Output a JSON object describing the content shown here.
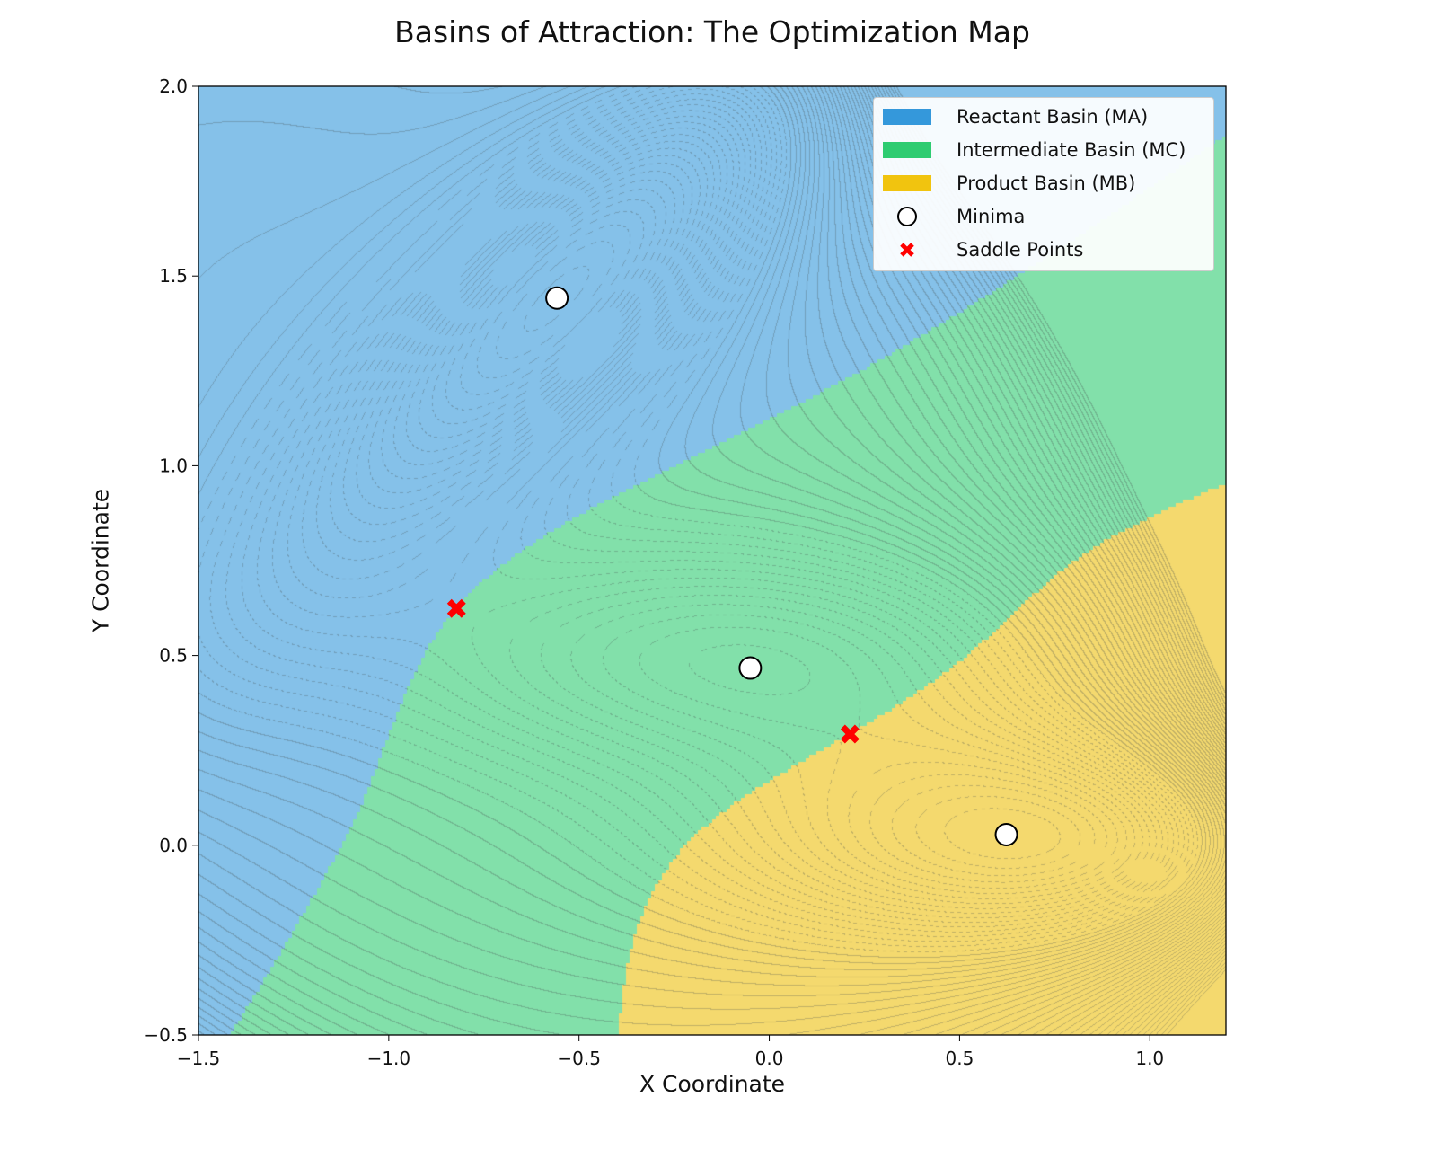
{
  "chart_data": {
    "type": "heatmap",
    "title": "Basins of Attraction: The Optimization Map",
    "xlabel": "X Coordinate",
    "ylabel": "Y Coordinate",
    "xlim": [
      -1.5,
      1.2
    ],
    "ylim": [
      -0.5,
      2.0
    ],
    "xticks": [
      -1.5,
      -1.0,
      -0.5,
      0.0,
      0.5,
      1.0
    ],
    "xtick_labels": [
      "−1.5",
      "−1.0",
      "−0.5",
      "0.0",
      "0.5",
      "1.0"
    ],
    "yticks": [
      -0.5,
      0.0,
      0.5,
      1.0,
      1.5,
      2.0
    ],
    "ytick_labels": [
      "−0.5",
      "0.0",
      "0.5",
      "1.0",
      "1.5",
      "2.0"
    ],
    "grid": false,
    "legend_position": "top-right",
    "basins": [
      {
        "name": "Reactant Basin (MA)",
        "color": "#3498db",
        "fill": "#85c1e9"
      },
      {
        "name": "Intermediate Basin (MC)",
        "color": "#2ecc71",
        "fill": "#82e0aa"
      },
      {
        "name": "Product Basin (MB)",
        "color": "#f1c40f",
        "fill": "#f4d96e"
      }
    ],
    "minima": {
      "name": "Minima",
      "points": [
        [
          -0.558,
          1.442
        ],
        [
          -0.05,
          0.467
        ],
        [
          0.623,
          0.028
        ]
      ],
      "basin_order": [
        0,
        1,
        2
      ]
    },
    "saddle_points": {
      "name": "Saddle Points",
      "color": "#ff0000",
      "points": [
        [
          -0.822,
          0.624
        ],
        [
          0.212,
          0.293
        ]
      ]
    }
  }
}
